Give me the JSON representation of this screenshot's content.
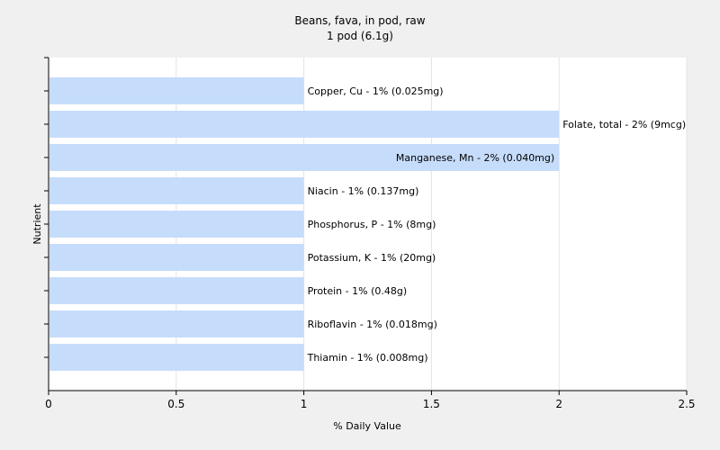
{
  "chart_data": {
    "type": "bar",
    "orientation": "horizontal",
    "title": "Beans, fava, in pod, raw",
    "subtitle": "1 pod (6.1g)",
    "xlabel": "% Daily Value",
    "ylabel": "Nutrient",
    "xlim": [
      0,
      2.5
    ],
    "xticks": [
      0,
      0.5,
      1,
      1.5,
      2,
      2.5
    ],
    "xtick_labels": [
      "0",
      "0.5",
      "1",
      "1.5",
      "2",
      "2.5"
    ],
    "grid": true,
    "bar_color": "#c6dcfb",
    "background_color": "#f0f0f0",
    "plot_background_color": "#ffffff",
    "categories": [
      "Copper, Cu",
      "Folate, total",
      "Manganese, Mn",
      "Niacin",
      "Phosphorus, P",
      "Potassium, K",
      "Protein",
      "Riboflavin",
      "Thiamin"
    ],
    "values": [
      1,
      2,
      2,
      1,
      1,
      1,
      1,
      1,
      1
    ],
    "labels": [
      "Copper, Cu - 1% (0.025mg)",
      "Folate, total - 2% (9mcg)",
      "Manganese, Mn - 2% (0.040mg)",
      "Niacin - 1% (0.137mg)",
      "Phosphorus, P - 1% (8mg)",
      "Potassium, K - 1% (20mg)",
      "Protein - 1% (0.48g)",
      "Riboflavin - 1% (0.018mg)",
      "Thiamin - 1% (0.008mg)"
    ]
  }
}
